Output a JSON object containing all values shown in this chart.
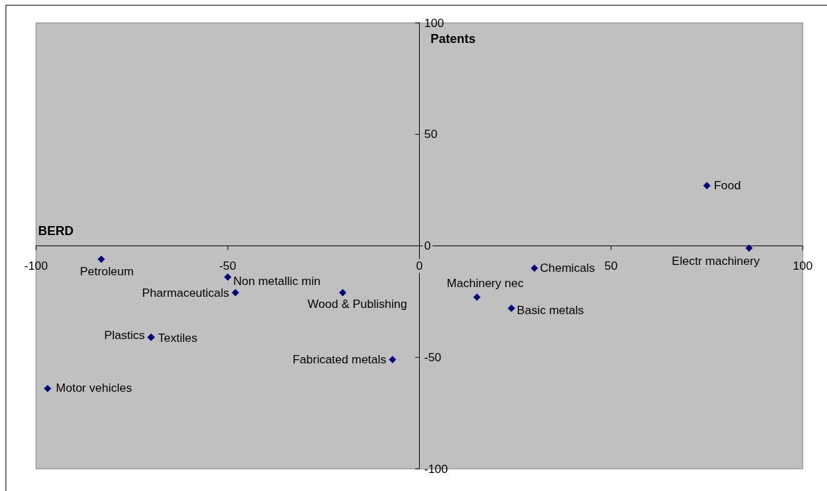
{
  "chart_data": {
    "type": "scatter",
    "xlabel": "BERD",
    "ylabel": "Patents",
    "xlim": [
      -100,
      100
    ],
    "ylim": [
      -100,
      100
    ],
    "xticks": [
      -100,
      -50,
      0,
      50,
      100
    ],
    "yticks": [
      -100,
      -50,
      0,
      50,
      100
    ],
    "marker": "diamond",
    "series": [
      {
        "color": "#000080",
        "x": [
          -83,
          -50,
          -48,
          -70,
          -70,
          -97,
          -20,
          -7,
          15,
          24,
          30,
          75,
          86
        ],
        "values": [
          -6,
          -14,
          -21,
          -41,
          -41,
          -64,
          -21,
          -51,
          -23,
          -28,
          -10,
          27,
          -1
        ]
      }
    ],
    "annotations": [
      {
        "text": "Petroleum",
        "x": -83,
        "y": -6
      },
      {
        "text": "Non metallic min",
        "x": -50,
        "y": -14
      },
      {
        "text": "Pharmaceuticals",
        "x": -48,
        "y": -21
      },
      {
        "text": "Plastics",
        "x": -70,
        "y": -41
      },
      {
        "text": "Textiles",
        "x": -70,
        "y": -41
      },
      {
        "text": "Motor vehicles",
        "x": -97,
        "y": -64
      },
      {
        "text": "Wood & Publishing",
        "x": -20,
        "y": -21
      },
      {
        "text": "Fabricated metals",
        "x": -7,
        "y": -51
      },
      {
        "text": "Machinery nec",
        "x": 15,
        "y": -23
      },
      {
        "text": "Basic metals",
        "x": 24,
        "y": -28
      },
      {
        "text": "Chemicals",
        "x": 30,
        "y": -10
      },
      {
        "text": "Food",
        "x": 75,
        "y": 27
      },
      {
        "text": "Electr machinery",
        "x": 86,
        "y": -1
      }
    ]
  }
}
